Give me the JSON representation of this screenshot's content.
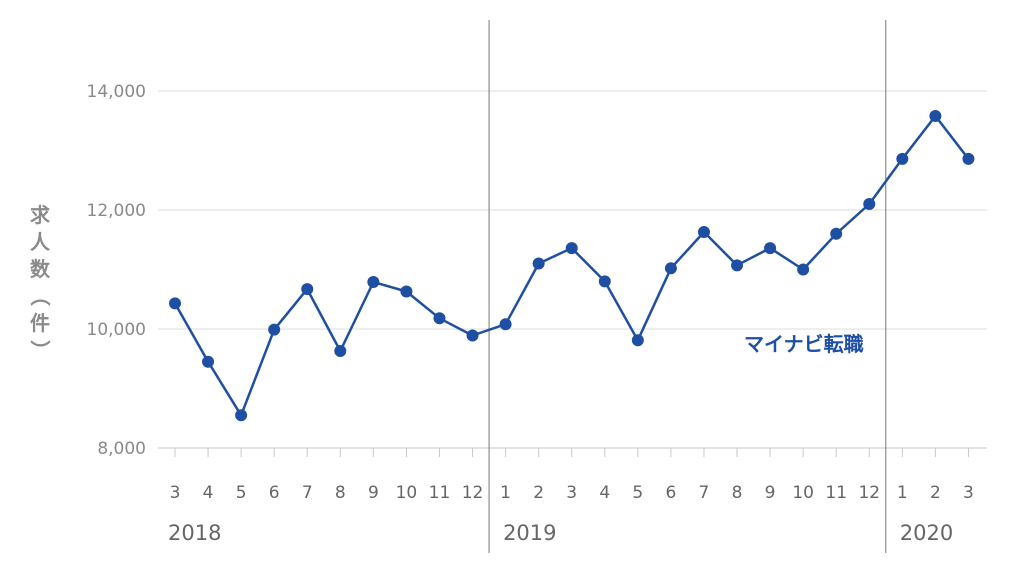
{
  "chart_data": {
    "type": "line",
    "ylabel": "求人数（件）",
    "ylim": [
      8000,
      14000
    ],
    "yticks": [
      8000,
      10000,
      12000,
      14000
    ],
    "ytick_labels": [
      "8,000",
      "10,000",
      "12,000",
      "14,000"
    ],
    "x_labels": [
      "3",
      "4",
      "5",
      "6",
      "7",
      "8",
      "9",
      "10",
      "11",
      "12",
      "1",
      "2",
      "3",
      "4",
      "5",
      "6",
      "7",
      "8",
      "9",
      "10",
      "11",
      "12",
      "1",
      "2",
      "3"
    ],
    "years": [
      {
        "label": "2018",
        "start_index": 0
      },
      {
        "label": "2019",
        "start_index": 10
      },
      {
        "label": "2020",
        "start_index": 22
      }
    ],
    "grid": true,
    "series": [
      {
        "name": "マイナビ転職",
        "color": "#1f4fa3",
        "values": [
          10430,
          9450,
          8550,
          9990,
          10670,
          9630,
          10790,
          10630,
          10180,
          9890,
          10080,
          11100,
          11360,
          10800,
          9810,
          11020,
          11630,
          11070,
          11360,
          11000,
          11600,
          12100,
          12860,
          13580,
          12860
        ]
      }
    ]
  }
}
